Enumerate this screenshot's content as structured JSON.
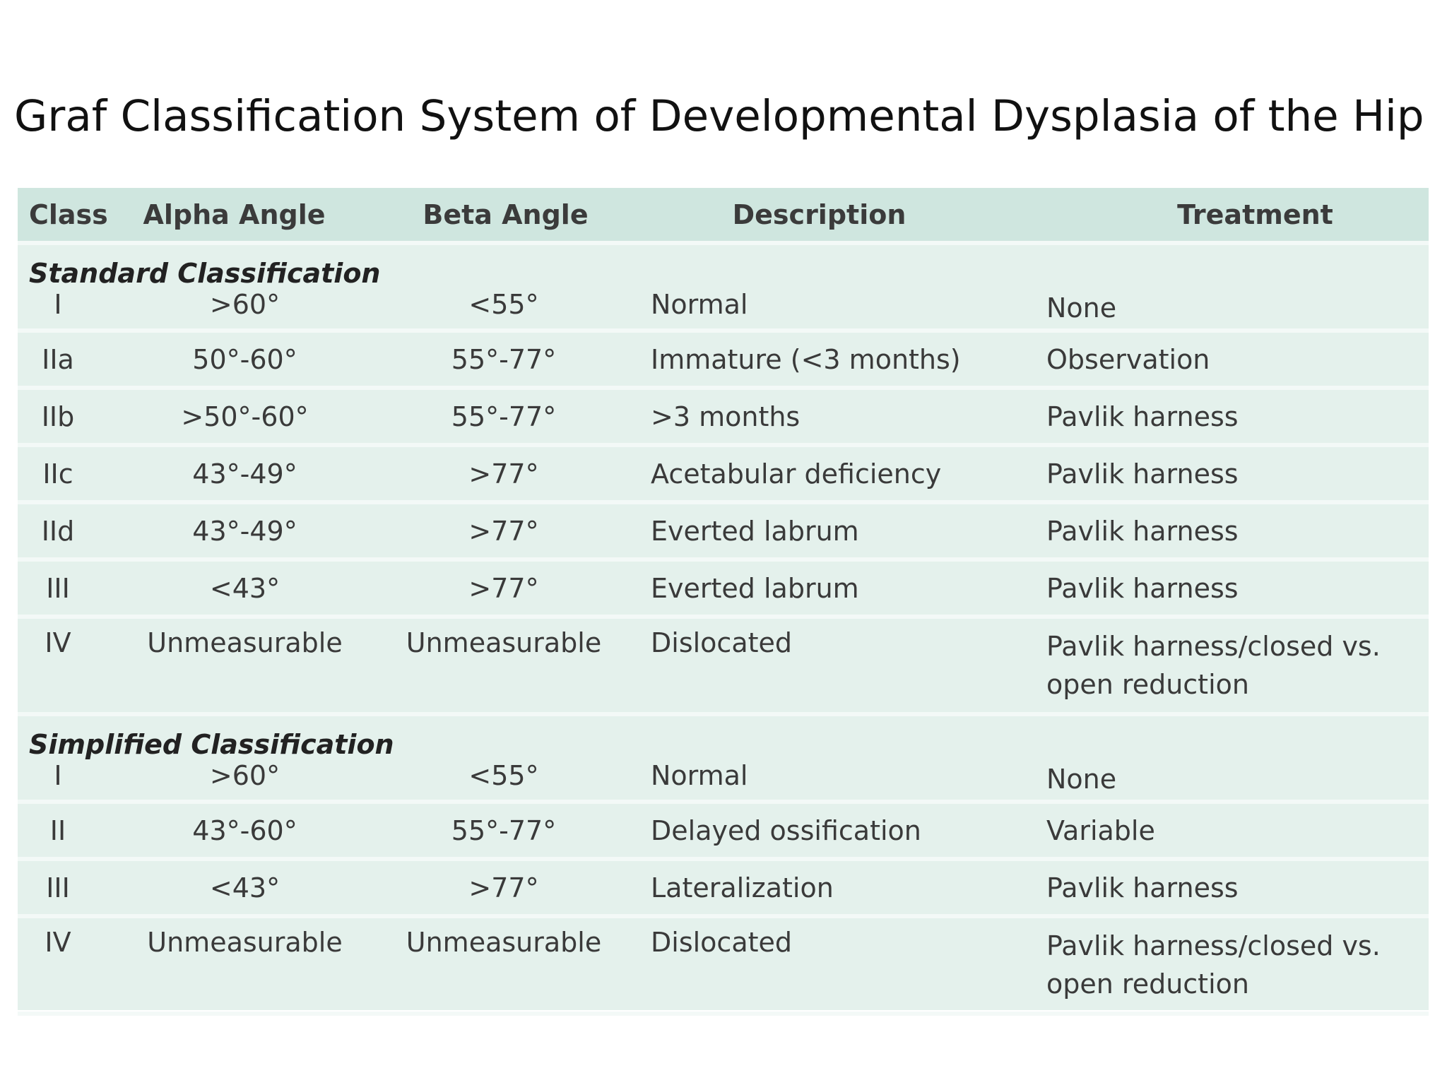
{
  "title": "Graf Classification System of Developmental Dysplasia of the Hip",
  "table": {
    "headers": {
      "class": "Class",
      "alpha": "Alpha Angle",
      "beta": "Beta Angle",
      "description": "Description",
      "treatment": "Treatment"
    },
    "standard": {
      "label": "Standard Classification",
      "rows": [
        {
          "class": "I",
          "alpha": ">60°",
          "beta": "<55°",
          "description": "Normal",
          "treatment": "None"
        },
        {
          "class": "IIa",
          "alpha": "50°-60°",
          "beta": "55°-77°",
          "description": "Immature (<3 months)",
          "treatment": "Observation"
        },
        {
          "class": "IIb",
          "alpha": ">50°-60°",
          "beta": "55°-77°",
          "description": ">3 months",
          "treatment": "Pavlik harness"
        },
        {
          "class": "IIc",
          "alpha": "43°-49°",
          "beta": ">77°",
          "description": "Acetabular deficiency",
          "treatment": "Pavlik harness"
        },
        {
          "class": "IId",
          "alpha": "43°-49°",
          "beta": ">77°",
          "description": "Everted labrum",
          "treatment": "Pavlik harness"
        },
        {
          "class": "III",
          "alpha": "<43°",
          "beta": ">77°",
          "description": "Everted labrum",
          "treatment": "Pavlik harness"
        },
        {
          "class": "IV",
          "alpha": "Unmeasurable",
          "beta": "Unmeasurable",
          "description": "Dislocated",
          "treatment": "Pavlik harness/closed vs. open reduction"
        }
      ]
    },
    "simplified": {
      "label": "Simplified Classification",
      "rows": [
        {
          "class": "I",
          "alpha": ">60°",
          "beta": "<55°",
          "description": "Normal",
          "treatment": "None"
        },
        {
          "class": "II",
          "alpha": "43°-60°",
          "beta": "55°-77°",
          "description": "Delayed ossification",
          "treatment": "Variable"
        },
        {
          "class": "III",
          "alpha": "<43°",
          "beta": ">77°",
          "description": "Lateralization",
          "treatment": "Pavlik harness"
        },
        {
          "class": "IV",
          "alpha": "Unmeasurable",
          "beta": "Unmeasurable",
          "description": "Dislocated",
          "treatment": "Pavlik harness/closed vs. open reduction"
        }
      ]
    }
  }
}
